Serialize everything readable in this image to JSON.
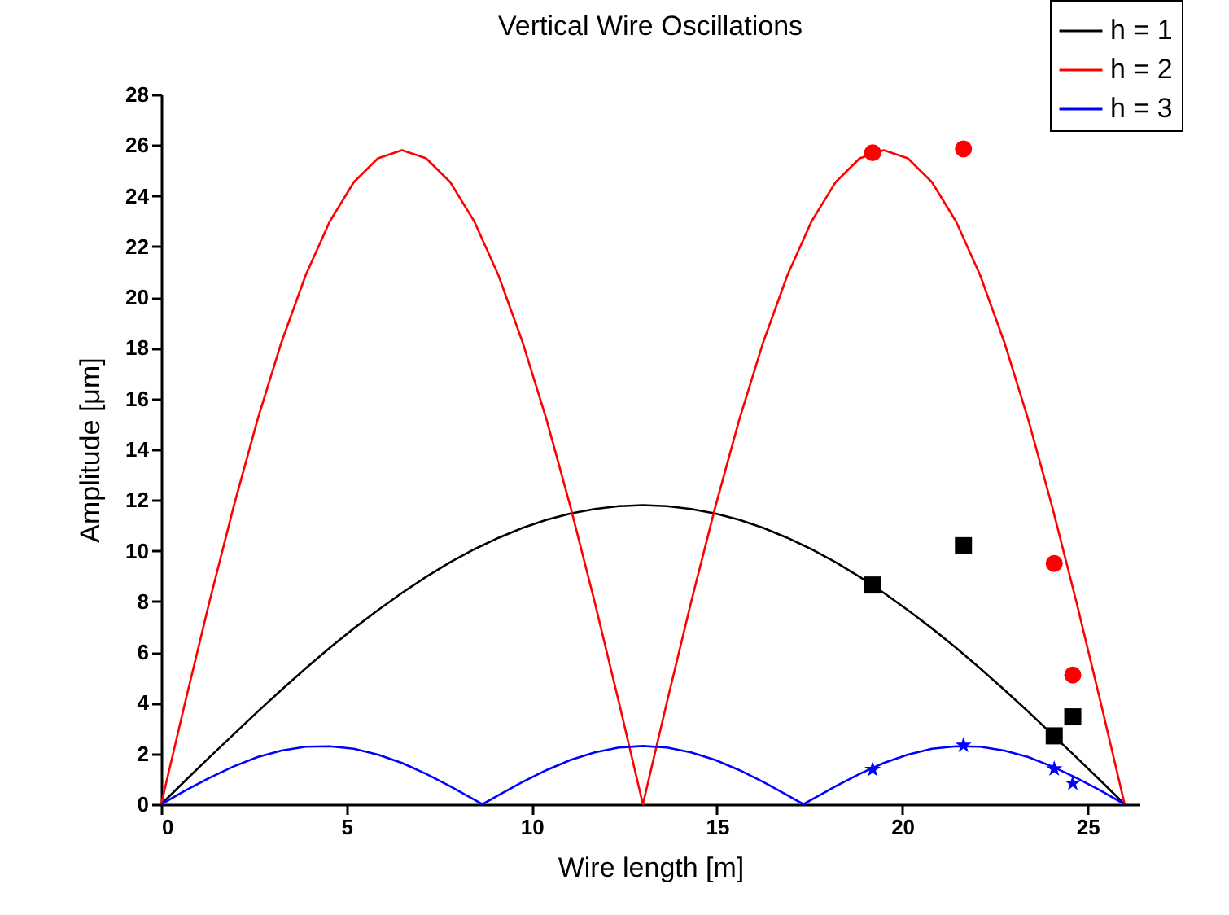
{
  "chart_data": {
    "type": "line",
    "title": "Vertical Wire Oscillations",
    "xlabel": "Wire length [m]",
    "ylabel": "Amplitude [μm]",
    "xlim": [
      0,
      26.4
    ],
    "xticks": [
      0,
      5,
      10,
      15,
      20,
      25
    ],
    "ylim": [
      0,
      28
    ],
    "yticks": [
      0,
      2,
      4,
      6,
      8,
      10,
      12,
      14,
      16,
      18,
      20,
      22,
      24,
      26,
      28
    ],
    "grid": false,
    "legend": "top right",
    "series": [
      {
        "name": "h = 1",
        "type": "line",
        "color": "#000000",
        "marker": "none",
        "x": [
          0,
          0.65,
          1.3,
          1.95,
          2.6,
          3.25,
          3.9,
          4.55,
          5.2,
          5.85,
          6.5,
          7.15,
          7.8,
          8.45,
          9.1,
          9.75,
          10.4,
          11.05,
          11.7,
          12.35,
          13,
          13.65,
          14.3,
          14.95,
          15.6,
          16.25,
          16.9,
          17.55,
          18.2,
          18.85,
          19.5,
          20.15,
          20.8,
          21.45,
          22.1,
          22.75,
          23.4,
          24.05,
          24.7,
          25.35,
          26
        ],
        "values": [
          0,
          0.93,
          1.85,
          2.75,
          3.65,
          4.52,
          5.36,
          6.17,
          6.94,
          7.66,
          8.34,
          8.97,
          9.55,
          10.06,
          10.51,
          10.9,
          11.22,
          11.47,
          11.65,
          11.76,
          11.8,
          11.76,
          11.65,
          11.47,
          11.22,
          10.9,
          10.51,
          10.06,
          9.55,
          8.97,
          8.34,
          7.66,
          6.94,
          6.17,
          5.36,
          4.52,
          3.65,
          2.75,
          1.85,
          0.93,
          0
        ]
      },
      {
        "name": "h = 2",
        "type": "line",
        "color": "#ff0000",
        "marker": "none",
        "x": [
          0,
          0.65,
          1.3,
          1.95,
          2.6,
          3.25,
          3.9,
          4.55,
          5.2,
          5.85,
          6.5,
          7.15,
          7.8,
          8.45,
          9.1,
          9.75,
          10.4,
          11.05,
          11.7,
          12.35,
          13,
          13.65,
          14.3,
          14.95,
          15.6,
          16.25,
          16.9,
          17.55,
          18.2,
          18.85,
          19.5,
          20.15,
          20.8,
          21.45,
          22.1,
          22.75,
          23.4,
          24.05,
          24.7,
          25.35,
          26
        ],
        "values": [
          0,
          4.04,
          7.97,
          11.71,
          15.17,
          18.24,
          20.87,
          22.99,
          24.54,
          25.48,
          25.8,
          25.48,
          24.54,
          22.99,
          20.87,
          18.24,
          15.17,
          11.71,
          7.97,
          4.04,
          0,
          4.04,
          7.97,
          11.71,
          15.17,
          18.24,
          20.87,
          22.99,
          24.54,
          25.48,
          25.8,
          25.48,
          24.54,
          22.99,
          20.87,
          18.24,
          15.17,
          11.71,
          7.97,
          4.04,
          0
        ]
      },
      {
        "name": "h = 3",
        "type": "line",
        "color": "#0000ff",
        "marker": "none",
        "x": [
          0,
          0.65,
          1.3,
          1.95,
          2.6,
          3.25,
          3.9,
          4.55,
          5.2,
          5.85,
          6.5,
          7.15,
          7.8,
          8.45,
          8.67,
          9.1,
          9.75,
          10.4,
          11.05,
          11.7,
          12.35,
          13,
          13.65,
          14.3,
          14.95,
          15.6,
          16.25,
          16.9,
          17.33,
          17.55,
          18.2,
          18.85,
          19.5,
          20.15,
          20.8,
          21.45,
          22.1,
          22.75,
          23.4,
          24.05,
          24.7,
          25.35,
          26
        ],
        "values": [
          0,
          0.54,
          1.04,
          1.49,
          1.86,
          2.12,
          2.27,
          2.29,
          2.19,
          1.96,
          1.63,
          1.2,
          0.71,
          0.18,
          0,
          0.36,
          0.88,
          1.35,
          1.75,
          2.05,
          2.24,
          2.3,
          2.24,
          2.05,
          1.75,
          1.35,
          0.88,
          0.36,
          0,
          0.18,
          0.71,
          1.2,
          1.63,
          1.96,
          2.19,
          2.29,
          2.27,
          2.12,
          1.86,
          1.49,
          1.04,
          0.54,
          0
        ]
      },
      {
        "type": "scatter",
        "color": "#000000",
        "marker": "square",
        "x": [
          19.2,
          21.65,
          24.1,
          24.6
        ],
        "values": [
          8.65,
          10.2,
          2.7,
          3.45
        ]
      },
      {
        "type": "scatter",
        "color": "#ff0000",
        "marker": "circle",
        "x": [
          19.2,
          21.65,
          24.1,
          24.6
        ],
        "values": [
          25.7,
          25.85,
          9.5,
          5.1
        ]
      },
      {
        "type": "scatter",
        "color": "#0000ff",
        "marker": "star",
        "x": [
          19.2,
          21.65,
          24.1,
          24.6
        ],
        "values": [
          1.37,
          2.33,
          1.4,
          0.83
        ]
      }
    ]
  }
}
